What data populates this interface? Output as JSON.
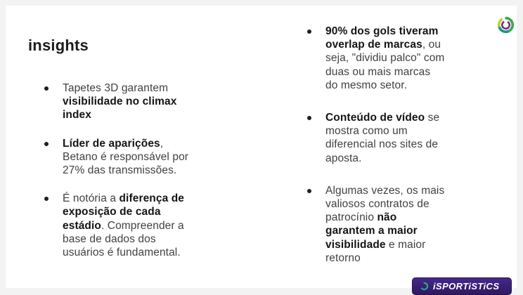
{
  "slide_title": "insights",
  "columns": [
    {
      "name": "left",
      "bullets": [
        {
          "lines": [
            [
              {
                "t": "Tapetes 3D garantem",
                "b": false
              }
            ],
            [
              {
                "t": "visibilidade no climax",
                "b": true
              }
            ],
            [
              {
                "t": "index",
                "b": true
              }
            ]
          ]
        },
        {
          "lines": [
            [
              {
                "t": "Líder de aparições",
                "b": true
              },
              {
                "t": ",",
                "b": false
              }
            ],
            [
              {
                "t": "Betano é responsável por",
                "b": false
              }
            ],
            [
              {
                "t": "27% das transmissões.",
                "b": false
              }
            ]
          ]
        },
        {
          "lines": [
            [
              {
                "t": "É notória a ",
                "b": false
              },
              {
                "t": "diferença de",
                "b": true
              }
            ],
            [
              {
                "t": "exposição de cada",
                "b": true
              }
            ],
            [
              {
                "t": "estádio",
                "b": true
              },
              {
                "t": ". Compreender a",
                "b": false
              }
            ],
            [
              {
                "t": "base de dados dos",
                "b": false
              }
            ],
            [
              {
                "t": "usuários é fundamental.",
                "b": false
              }
            ]
          ]
        }
      ]
    },
    {
      "name": "right",
      "bullets": [
        {
          "lines": [
            [
              {
                "t": "90% dos gols tiveram",
                "b": true
              }
            ],
            [
              {
                "t": "overlap de marcas",
                "b": true
              },
              {
                "t": ", ou",
                "b": false
              }
            ],
            [
              {
                "t": "seja, \"dividiu palco\" com",
                "b": false
              }
            ],
            [
              {
                "t": "duas ou mais marcas",
                "b": false
              }
            ],
            [
              {
                "t": "do mesmo setor.",
                "b": false
              }
            ]
          ]
        },
        {
          "lines": [
            [
              {
                "t": "Conteúdo de vídeo",
                "b": true
              },
              {
                "t": " se",
                "b": false
              }
            ],
            [
              {
                "t": "mostra como um",
                "b": false
              }
            ],
            [
              {
                "t": "diferencial nos sites de",
                "b": false
              }
            ],
            [
              {
                "t": "aposta.",
                "b": false
              }
            ]
          ]
        },
        {
          "lines": [
            [
              {
                "t": "Algumas vezes, os mais",
                "b": false
              }
            ],
            [
              {
                "t": "valiosos contratos de",
                "b": false
              }
            ],
            [
              {
                "t": "patrocínio ",
                "b": false
              },
              {
                "t": "não",
                "b": true
              }
            ],
            [
              {
                "t": "garantem a maior",
                "b": true
              }
            ],
            [
              {
                "t": "visibilidade",
                "b": true
              },
              {
                "t": " e maior",
                "b": false
              }
            ],
            [
              {
                "t": "retorno",
                "b": false
              }
            ]
          ]
        }
      ]
    }
  ],
  "badge": {
    "label": "iSPORTiSTiCS"
  },
  "icons": {
    "top_logo": "isportistics-ring-logo",
    "badge_logo": "isportistics-ring-logo"
  },
  "colors": {
    "badge_bg": "#3A2078",
    "text_regular": "#414141",
    "text_bold": "#141414",
    "logo_green": "#3EA84E",
    "logo_teal": "#16988F",
    "logo_yellow": "#BCD435",
    "logo_purple": "#73307D"
  }
}
